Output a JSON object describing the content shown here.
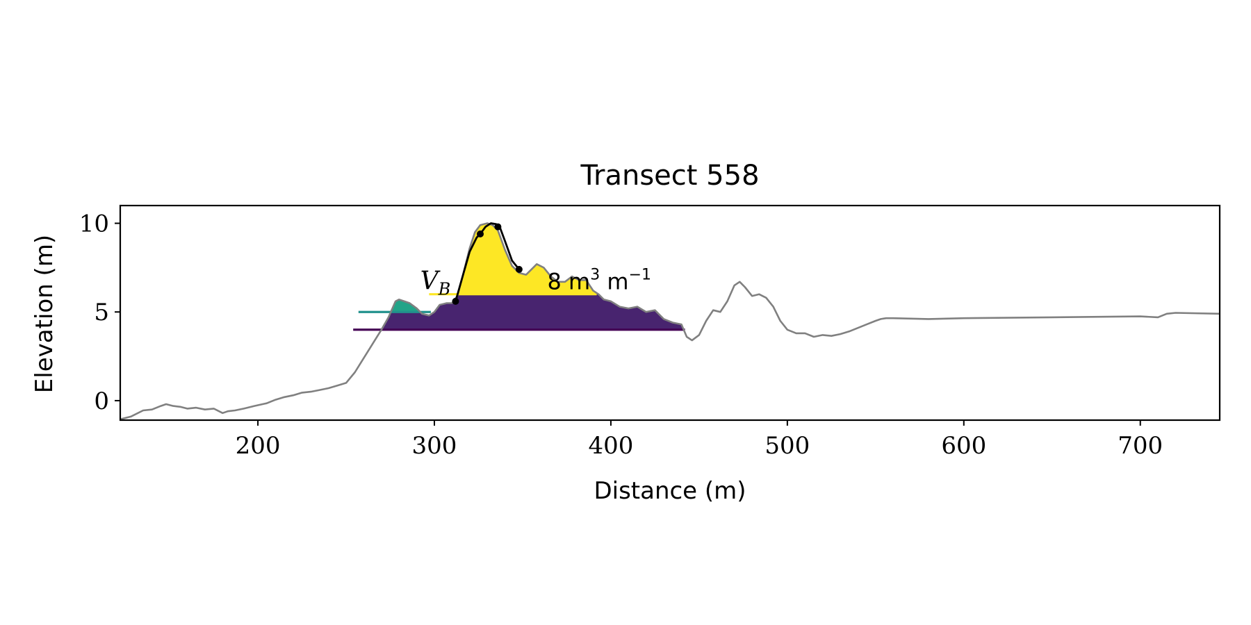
{
  "chart_data": {
    "type": "line",
    "title": "Transect 558",
    "xlabel": "Distance (m)",
    "ylabel": "Elevation (m)",
    "xlim": [
      122,
      745
    ],
    "ylim": [
      -1.1,
      11.0
    ],
    "xticks": [
      200,
      300,
      400,
      500,
      600,
      700
    ],
    "yticks": [
      0,
      5,
      10
    ],
    "grid": false,
    "profile": {
      "color": "#808080",
      "x": [
        122,
        128,
        135,
        140,
        145,
        148,
        152,
        156,
        160,
        165,
        170,
        175,
        180,
        183,
        187,
        192,
        198,
        205,
        210,
        215,
        220,
        225,
        230,
        235,
        240,
        245,
        250,
        255,
        260,
        265,
        270,
        274,
        278,
        280,
        283,
        286,
        290,
        293,
        297,
        300,
        303,
        307,
        310,
        313,
        316,
        320,
        323,
        326,
        330,
        333,
        336,
        340,
        344,
        348,
        352,
        355,
        358,
        362,
        366,
        370,
        374,
        378,
        382,
        386,
        390,
        393,
        396,
        400,
        405,
        410,
        415,
        420,
        425,
        430,
        435,
        440,
        443,
        446,
        450,
        454,
        458,
        462,
        466,
        470,
        473,
        476,
        480,
        484,
        488,
        492,
        496,
        500,
        505,
        510,
        515,
        520,
        525,
        530,
        535,
        540,
        545,
        550,
        553,
        556,
        560,
        580,
        600,
        650,
        700,
        710,
        715,
        720,
        745
      ],
      "y": [
        -1.05,
        -0.9,
        -0.55,
        -0.5,
        -0.3,
        -0.2,
        -0.3,
        -0.35,
        -0.45,
        -0.4,
        -0.5,
        -0.45,
        -0.7,
        -0.6,
        -0.55,
        -0.45,
        -0.3,
        -0.15,
        0.05,
        0.2,
        0.3,
        0.45,
        0.5,
        0.6,
        0.7,
        0.85,
        1.0,
        1.6,
        2.4,
        3.2,
        4.0,
        4.7,
        5.6,
        5.7,
        5.6,
        5.5,
        5.2,
        4.9,
        4.8,
        5.0,
        5.4,
        5.5,
        5.5,
        5.9,
        7.0,
        8.6,
        9.5,
        9.9,
        10.0,
        9.9,
        9.6,
        8.5,
        7.6,
        7.2,
        7.1,
        7.4,
        7.7,
        7.5,
        7.0,
        6.7,
        6.7,
        7.0,
        6.8,
        6.8,
        6.2,
        6.0,
        5.7,
        5.6,
        5.3,
        5.2,
        5.3,
        5.0,
        5.1,
        4.6,
        4.4,
        4.3,
        3.6,
        3.4,
        3.7,
        4.5,
        5.1,
        5.0,
        5.6,
        6.5,
        6.7,
        6.4,
        5.9,
        6.0,
        5.8,
        5.3,
        4.5,
        4.0,
        3.8,
        3.8,
        3.6,
        3.7,
        3.65,
        3.75,
        3.9,
        4.1,
        4.3,
        4.5,
        4.6,
        4.65,
        4.65,
        4.6,
        4.65,
        4.7,
        4.75,
        4.7,
        4.9,
        4.95,
        4.9
      ]
    },
    "bands": [
      {
        "level": 4.0,
        "x_start": 254,
        "x_end": 442,
        "color": "#440154",
        "fill": "#48246f"
      },
      {
        "level": 5.0,
        "x_start": 257,
        "x_end": 298,
        "color": "#21918c",
        "fill": "#22a488"
      },
      {
        "level": 6.0,
        "x_start": 297,
        "x_end": 392,
        "color": "#fde725",
        "fill": "#fde725"
      }
    ],
    "dune_front": {
      "color": "#000000",
      "x": [
        312,
        316,
        320,
        324,
        326,
        329,
        332,
        335,
        337,
        340,
        344,
        348
      ],
      "y": [
        5.6,
        7.0,
        8.4,
        9.2,
        9.4,
        9.8,
        10.0,
        9.95,
        9.8,
        9.0,
        7.9,
        7.4
      ],
      "markers_x": [
        312,
        326,
        336,
        348
      ],
      "markers_y": [
        5.6,
        9.4,
        9.8,
        7.4
      ]
    },
    "annotations": [
      {
        "text": "V",
        "subscript": "B",
        "x": 292,
        "y": 6.2
      },
      {
        "text": "8 m",
        "superscript": "3",
        "text2": " m",
        "superscript2": "−1",
        "x": 364,
        "y": 6.2
      }
    ]
  }
}
